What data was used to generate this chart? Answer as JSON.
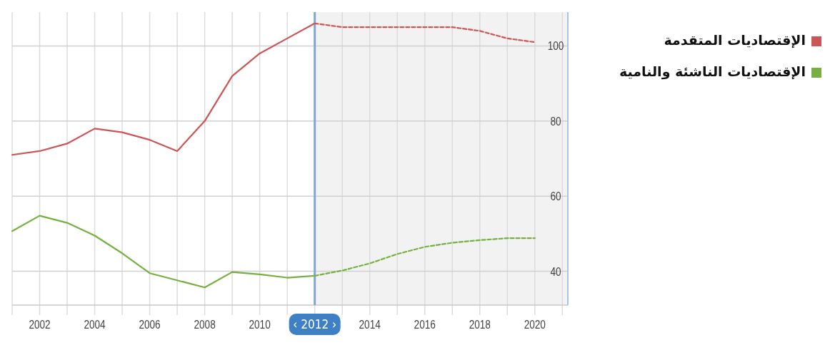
{
  "chart_data": {
    "type": "line",
    "series": [
      {
        "name": "الإقتصاديات المتقدمة",
        "color": "#cc5555",
        "line_style": "solid",
        "x": [
          2001,
          2002,
          2003,
          2004,
          2005,
          2006,
          2007,
          2008,
          2009,
          2010,
          2011,
          2012
        ],
        "values": [
          71,
          72,
          74,
          78,
          77,
          75,
          72,
          80,
          92,
          98,
          102,
          106
        ]
      },
      {
        "color": "#cc5555",
        "line_style": "dashed",
        "x": [
          2012,
          2013,
          2014,
          2015,
          2016,
          2017,
          2018,
          2019,
          2020
        ],
        "values": [
          106,
          105,
          105,
          105,
          105,
          105,
          104,
          102,
          101
        ]
      },
      {
        "name": "الإقتصاديات الناشئة والنامية",
        "color": "#77b040",
        "line_style": "solid",
        "x": [
          2001,
          2002,
          2003,
          2004,
          2005,
          2006,
          2007,
          2008,
          2009,
          2010,
          2011,
          2012
        ],
        "values": [
          50.7,
          54.8,
          52.9,
          49.5,
          44.8,
          39.5,
          37.6,
          35.7,
          39.8,
          39.2,
          38.3,
          38.8
        ]
      },
      {
        "color": "#77b040",
        "line_style": "dashed",
        "x": [
          2012,
          2013,
          2014,
          2015,
          2016,
          2017,
          2018,
          2019,
          2020
        ],
        "values": [
          38.8,
          40.2,
          42.1,
          44.6,
          46.5,
          47.6,
          48.3,
          48.8,
          48.8
        ]
      }
    ],
    "xlim": [
      2001,
      2021.2
    ],
    "xticks": [
      {
        "value": 2001,
        "label": null
      },
      2002,
      {
        "value": 2003,
        "label": null
      },
      2004,
      {
        "value": 2005,
        "label": null
      },
      2006,
      {
        "value": 2007,
        "label": null
      },
      2008,
      {
        "value": 2009,
        "label": null
      },
      2010,
      {
        "value": 2011,
        "label": null
      },
      {
        "value": 2012,
        "label": "‹ 2012 ›"
      },
      {
        "value": 2013,
        "label": null
      },
      2014,
      {
        "value": 2015,
        "label": null
      },
      2016,
      {
        "value": 2017,
        "label": null
      },
      2018,
      {
        "value": 2019,
        "label": null
      },
      2020,
      {
        "value": 2021,
        "label": null
      }
    ],
    "ylim": [
      31,
      109
    ],
    "yticks": [
      40,
      60,
      80,
      100
    ],
    "bands": [
      {
        "axis": "x",
        "from": 2012,
        "to": 2021.2,
        "color": "#f2f2f2"
      }
    ],
    "ref_lines": [
      {
        "axis": "x",
        "value": 2012,
        "color": "#7fa6d6"
      }
    ],
    "grid": true,
    "legend": "right",
    "marker": "none"
  }
}
